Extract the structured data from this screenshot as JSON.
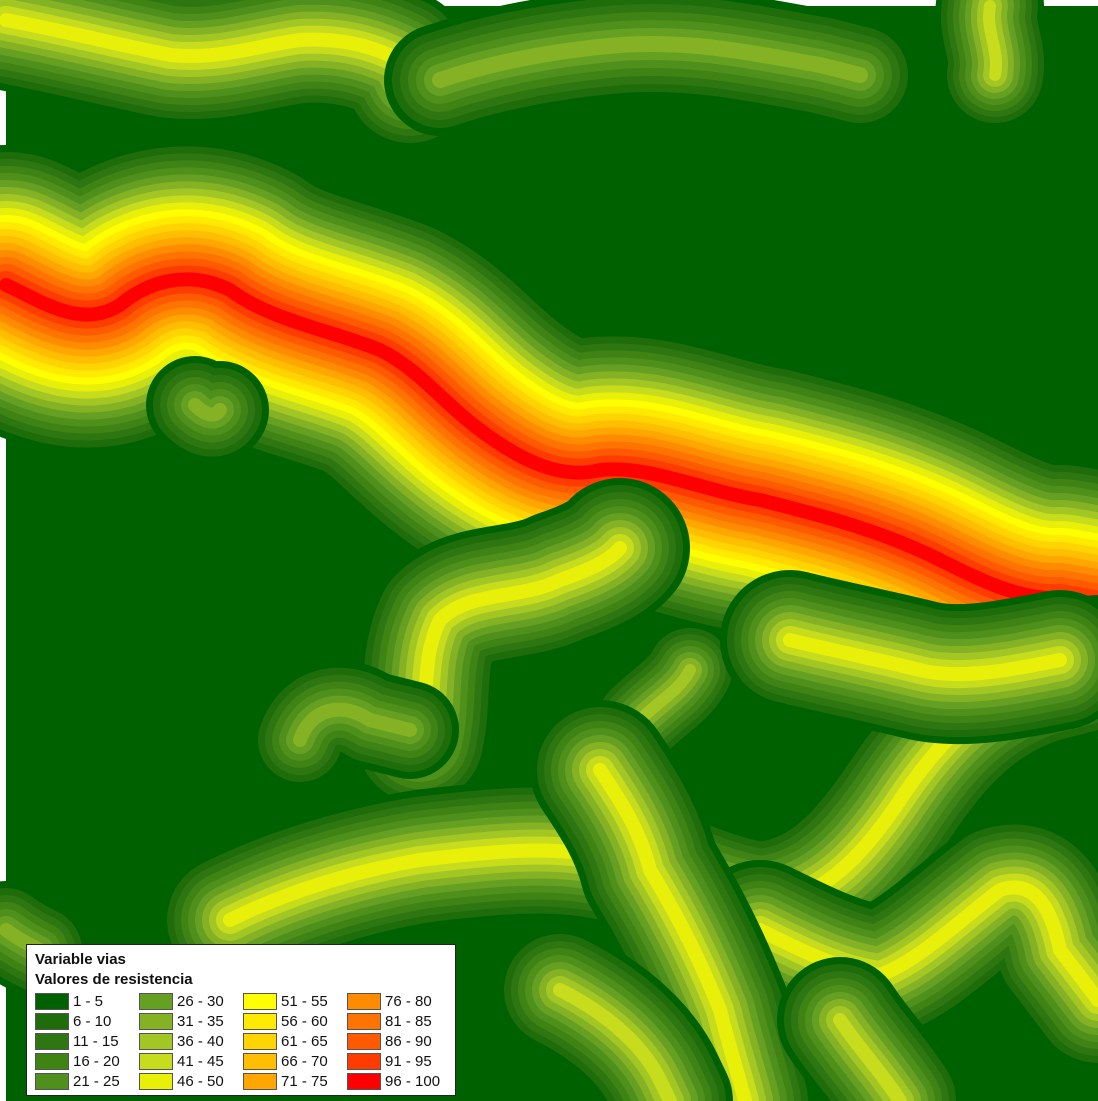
{
  "legend": {
    "title": "Variable vias",
    "subtitle": "Valores de resistencia",
    "classes": [
      {
        "label": "1 - 5",
        "color": "#006100"
      },
      {
        "label": "6 - 10",
        "color": "#1f6c0a"
      },
      {
        "label": "11 - 15",
        "color": "#2e7611"
      },
      {
        "label": "16 - 20",
        "color": "#3f8315"
      },
      {
        "label": "21 - 25",
        "color": "#4f8f1b"
      },
      {
        "label": "26 - 30",
        "color": "#66a022"
      },
      {
        "label": "31 - 35",
        "color": "#84b224"
      },
      {
        "label": "36 - 40",
        "color": "#a2c724"
      },
      {
        "label": "41 - 45",
        "color": "#c6dc1d"
      },
      {
        "label": "46 - 50",
        "color": "#e8f00a"
      },
      {
        "label": "51 - 55",
        "color": "#ffff00"
      },
      {
        "label": "56 - 60",
        "color": "#ffea00"
      },
      {
        "label": "61 - 65",
        "color": "#ffd400"
      },
      {
        "label": "66 - 70",
        "color": "#ffbe00"
      },
      {
        "label": "71 - 75",
        "color": "#ffa600"
      },
      {
        "label": "76 - 80",
        "color": "#ff8c00"
      },
      {
        "label": "81 - 85",
        "color": "#ff7300"
      },
      {
        "label": "86 - 90",
        "color": "#ff5a00"
      },
      {
        "label": "91 - 95",
        "color": "#ff3c00"
      },
      {
        "label": "96 - 100",
        "color": "#ff0000"
      }
    ]
  }
}
